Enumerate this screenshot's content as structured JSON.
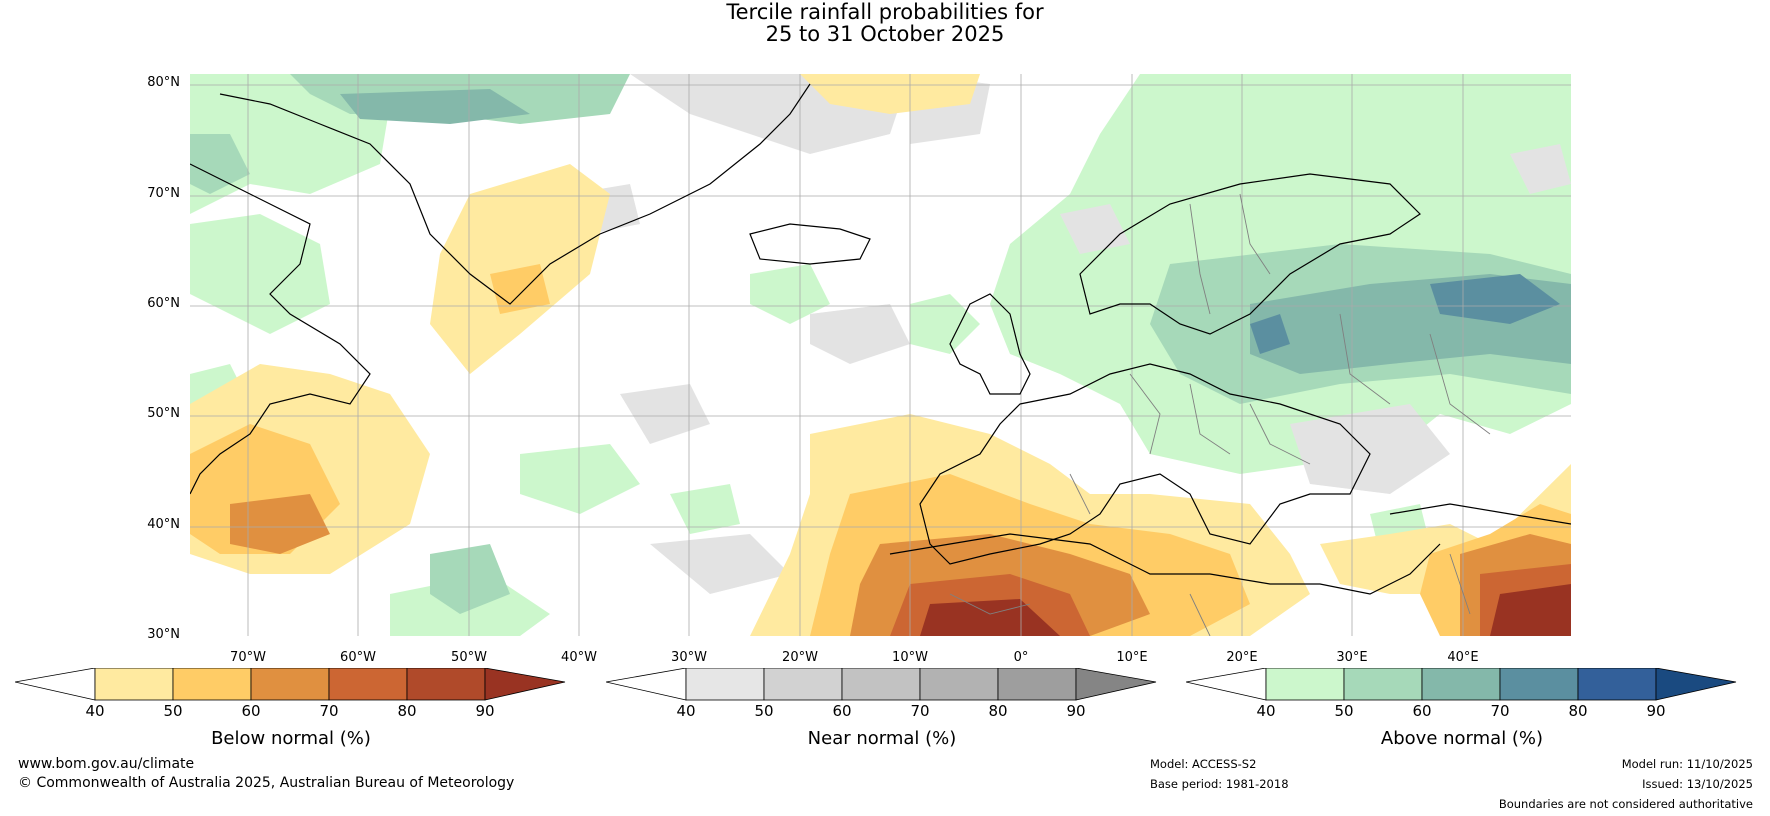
{
  "title": {
    "line1": "Tercile rainfall probabilities for",
    "line2": "25 to 31 October 2025"
  },
  "map": {
    "lat_labels": [
      "80°N",
      "70°N",
      "60°N",
      "50°N",
      "40°N",
      "30°N"
    ],
    "lon_labels": [
      "70°W",
      "60°W",
      "50°W",
      "40°W",
      "30°W",
      "20°W",
      "10°W",
      "0°",
      "10°E",
      "20°E",
      "30°E",
      "40°E"
    ]
  },
  "colorbars": {
    "below": {
      "label": "Below normal (%)",
      "ticks": [
        "40",
        "50",
        "60",
        "70",
        "80",
        "90"
      ],
      "colors": [
        "#ffffff",
        "#ffeaa0",
        "#ffcc66",
        "#e09040",
        "#cc6633",
        "#b04a2a",
        "#993322"
      ]
    },
    "near": {
      "label": "Near normal (%)",
      "ticks": [
        "40",
        "50",
        "60",
        "70",
        "80",
        "90"
      ],
      "colors": [
        "#ffffff",
        "#e6e6e6",
        "#d2d2d2",
        "#c2c2c2",
        "#b2b2b2",
        "#9e9e9e",
        "#858585"
      ]
    },
    "above": {
      "label": "Above normal (%)",
      "ticks": [
        "40",
        "50",
        "60",
        "70",
        "80",
        "90"
      ],
      "colors": [
        "#ffffff",
        "#ccf7cc",
        "#a6d9b9",
        "#84b8aa",
        "#5b8fa0",
        "#33609a",
        "#1a4a80"
      ]
    }
  },
  "footer": {
    "website": "www.bom.gov.au/climate",
    "copyright": "© Commonwealth of Australia 2025, Australian Bureau of Meteorology",
    "model": "Model: ACCESS-S2",
    "base_period": "Base period: 1981-2018",
    "model_run": "Model run: 11/10/2025",
    "issued": "Issued: 13/10/2025",
    "disclaimer": "Boundaries are not considered authoritative"
  }
}
